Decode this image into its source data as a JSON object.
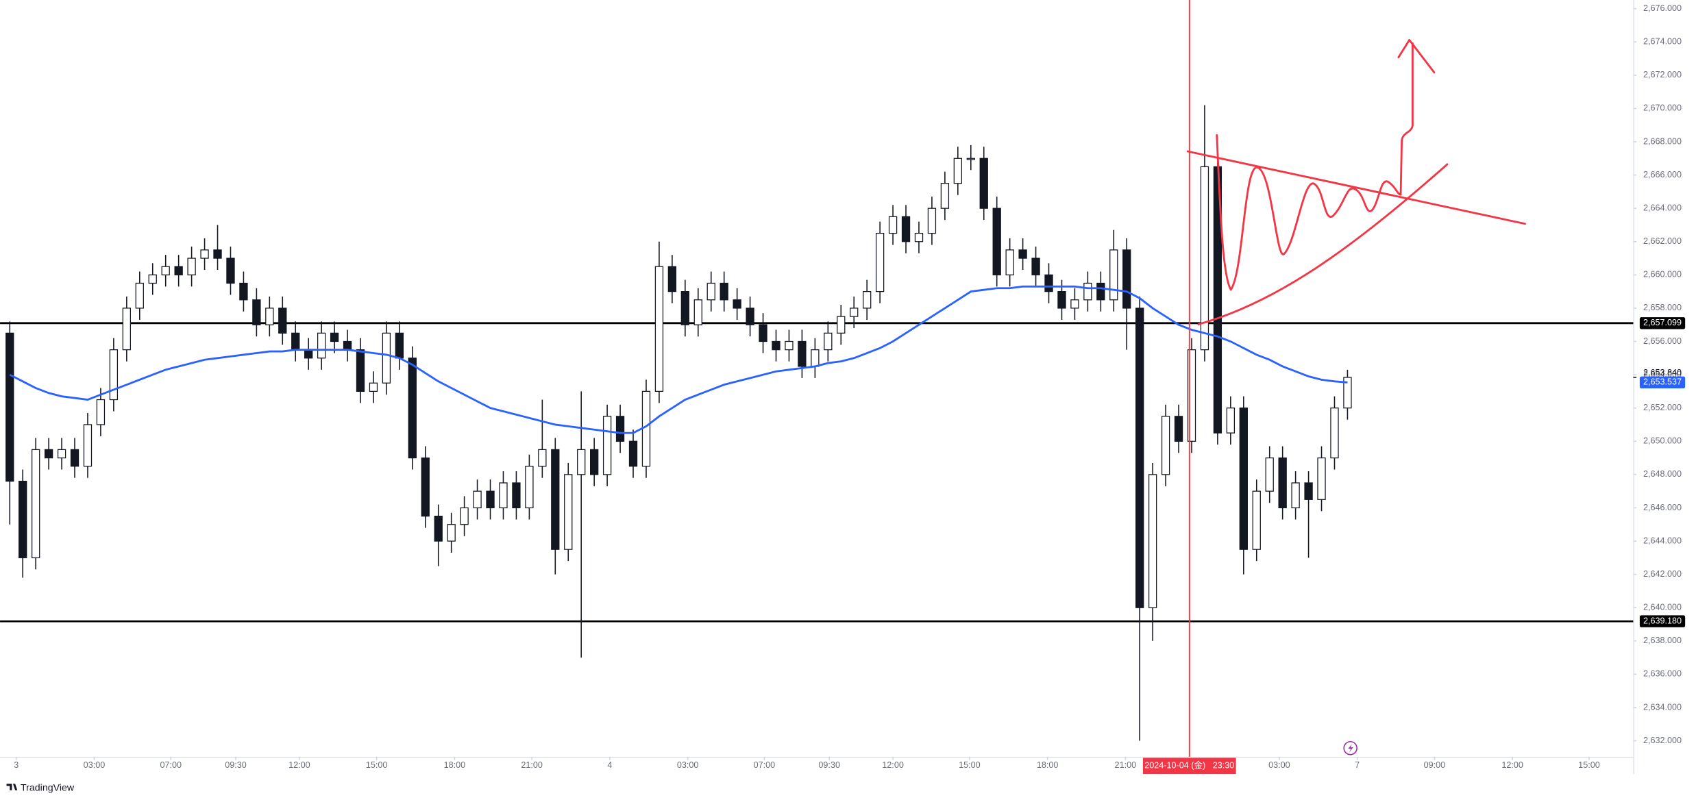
{
  "brand": "TradingView",
  "chart_data": {
    "type": "candlestick",
    "open": [
      2656.5,
      2647.6,
      2643,
      2649.5,
      2649,
      2649.5,
      2648.5,
      2651,
      2652.5,
      2655.5,
      2658,
      2659.5,
      2660,
      2660.5,
      2660,
      2661,
      2661.5,
      2661,
      2659.5,
      2658.5,
      2657,
      2658,
      2656.5,
      2655.5,
      2655,
      2656.5,
      2656,
      2655.5,
      2653,
      2653.5,
      2656.5,
      2655,
      2649,
      2645.5,
      2644,
      2645,
      2646,
      2647,
      2646,
      2647.5,
      2646,
      2648.5,
      2649.5,
      2643.5,
      2648,
      2649.5,
      2648,
      2651.5,
      2650,
      2648.5,
      2653,
      2660.5,
      2659,
      2657,
      2658.5,
      2659.5,
      2658.5,
      2658,
      2657,
      2656,
      2655.5,
      2656,
      2654.5,
      2655.5,
      2656.5,
      2657.5,
      2658,
      2659,
      2662.5,
      2663.5,
      2662,
      2662.5,
      2664,
      2665.5,
      2667,
      2667,
      2664,
      2660,
      2661.5,
      2661,
      2660,
      2659,
      2658,
      2658.5,
      2659.5,
      2658.5,
      2661.5,
      2658,
      2640,
      2648,
      2651.5,
      2650,
      2655.5,
      2666.5,
      2650.5,
      2652,
      2643.5,
      2647,
      2649,
      2646,
      2647.5,
      2646.5,
      2649,
      2652
    ],
    "high": [
      2657.2,
      2648.3,
      2650.2,
      2650.2,
      2650.2,
      2650.2,
      2651.7,
      2653.2,
      2656.2,
      2658.7,
      2660.2,
      2660.7,
      2661.2,
      2661.2,
      2661.7,
      2662.2,
      2663,
      2661.7,
      2660.2,
      2659.2,
      2658.7,
      2658.7,
      2657.2,
      2656.2,
      2657.2,
      2657.2,
      2656.7,
      2656.2,
      2654.2,
      2657.2,
      2657.2,
      2655.7,
      2649.7,
      2646.2,
      2645.7,
      2646.7,
      2647.7,
      2647.7,
      2648.2,
      2648.2,
      2649.2,
      2652.5,
      2650.2,
      2648.7,
      2653,
      2650.2,
      2652.2,
      2652.2,
      2650.7,
      2653.7,
      2662,
      2661.2,
      2659.7,
      2659.2,
      2660.2,
      2660.2,
      2659.2,
      2658.7,
      2657.7,
      2656.7,
      2656.7,
      2656.7,
      2656.2,
      2657.2,
      2658.2,
      2658.7,
      2659.7,
      2663.2,
      2664.2,
      2664.2,
      2663.2,
      2664.7,
      2666.2,
      2667.7,
      2667.8,
      2667.7,
      2664.7,
      2662.2,
      2662.2,
      2661.7,
      2660.7,
      2659.7,
      2659.2,
      2660.2,
      2660.2,
      2662.7,
      2662.2,
      2658.7,
      2648.7,
      2652.2,
      2652.2,
      2656.2,
      2670.2,
      2667.2,
      2652.7,
      2652.7,
      2647.7,
      2649.7,
      2649.7,
      2648.2,
      2648.2,
      2649.7,
      2652.7,
      2654.3
    ],
    "low": [
      2645,
      2641.8,
      2642.3,
      2648.3,
      2648.3,
      2647.8,
      2647.8,
      2650.3,
      2651.8,
      2654.8,
      2657.3,
      2658.8,
      2659.3,
      2659.3,
      2659.3,
      2660.3,
      2660.3,
      2658.8,
      2657.8,
      2656.3,
      2656.3,
      2655.8,
      2654.8,
      2654.3,
      2654.3,
      2655.3,
      2654.8,
      2652.3,
      2652.3,
      2652.8,
      2654.3,
      2648.3,
      2644.8,
      2642.5,
      2643.3,
      2644.3,
      2645.3,
      2645.3,
      2645.3,
      2645.3,
      2645.3,
      2647.8,
      2642,
      2642.8,
      2637,
      2647.3,
      2647.3,
      2649.3,
      2647.8,
      2647.8,
      2652.3,
      2658.3,
      2656.3,
      2656.3,
      2657.8,
      2657.8,
      2657.3,
      2656.3,
      2655.3,
      2654.8,
      2654.8,
      2653.8,
      2653.8,
      2654.8,
      2655.8,
      2656.8,
      2657.3,
      2658.3,
      2661.8,
      2661.3,
      2661.3,
      2661.8,
      2663.3,
      2664.8,
      2666.3,
      2663.3,
      2659.3,
      2659.3,
      2660.3,
      2659.3,
      2658.3,
      2657.3,
      2657.3,
      2657.8,
      2657.8,
      2657.8,
      2655.5,
      2632,
      2638,
      2647.3,
      2649.3,
      2649.3,
      2654.8,
      2649.8,
      2649.8,
      2642,
      2642.8,
      2646.3,
      2645.3,
      2645.3,
      2643,
      2645.8,
      2648.3,
      2651.3
    ],
    "close": [
      2647.6,
      2643,
      2649.5,
      2649,
      2649.5,
      2648.5,
      2651,
      2652.5,
      2655.5,
      2658,
      2659.5,
      2660,
      2660.5,
      2660,
      2661,
      2661.5,
      2661,
      2659.5,
      2658.5,
      2657,
      2658,
      2656.5,
      2655.5,
      2655,
      2656.5,
      2656,
      2655.5,
      2653,
      2653.5,
      2656.5,
      2655,
      2649,
      2645.5,
      2644,
      2645,
      2646,
      2647,
      2646,
      2647.5,
      2646,
      2648.5,
      2649.5,
      2643.5,
      2648,
      2649.5,
      2648,
      2651.5,
      2650,
      2648.5,
      2653,
      2660.5,
      2659,
      2657,
      2658.5,
      2659.5,
      2658.5,
      2658,
      2657,
      2656,
      2655.5,
      2656,
      2654.5,
      2655.5,
      2656.5,
      2657.5,
      2658,
      2659,
      2662.5,
      2663.5,
      2662,
      2662.5,
      2664,
      2665.5,
      2667,
      2667,
      2664,
      2660,
      2661.5,
      2661,
      2660,
      2659,
      2658,
      2658.5,
      2659.5,
      2658.5,
      2661.5,
      2658,
      2640,
      2648,
      2651.5,
      2650,
      2655.5,
      2666.5,
      2650.5,
      2652,
      2643.5,
      2647,
      2649,
      2646,
      2647.5,
      2646.5,
      2649,
      2652,
      2653.84
    ],
    "candle_colors": {
      "up": "#ffffff",
      "down": "#131722",
      "border": "#131722"
    },
    "ma": {
      "color": "#2962ff",
      "last_label": "2,653.537",
      "values": [
        2654,
        2653.6,
        2653.2,
        2652.9,
        2652.7,
        2652.6,
        2652.5,
        2652.8,
        2653.1,
        2653.4,
        2653.7,
        2654,
        2654.3,
        2654.5,
        2654.7,
        2654.9,
        2655,
        2655.1,
        2655.2,
        2655.3,
        2655.4,
        2655.4,
        2655.5,
        2655.5,
        2655.5,
        2655.5,
        2655.5,
        2655.4,
        2655.3,
        2655.2,
        2655,
        2654.6,
        2654.1,
        2653.6,
        2653.2,
        2652.8,
        2652.4,
        2652,
        2651.8,
        2651.6,
        2651.4,
        2651.2,
        2651,
        2650.9,
        2650.8,
        2650.7,
        2650.6,
        2650.5,
        2650.5,
        2650.9,
        2651.5,
        2652,
        2652.5,
        2652.8,
        2653.1,
        2653.4,
        2653.6,
        2653.8,
        2654,
        2654.2,
        2654.3,
        2654.4,
        2654.5,
        2654.7,
        2654.8,
        2655,
        2655.3,
        2655.6,
        2656,
        2656.5,
        2657,
        2657.5,
        2658,
        2658.5,
        2659,
        2659.1,
        2659.2,
        2659.2,
        2659.3,
        2659.3,
        2659.3,
        2659.3,
        2659.3,
        2659.2,
        2659.2,
        2659.1,
        2659,
        2658.6,
        2658,
        2657.5,
        2657,
        2656.7,
        2656.5,
        2656.3,
        2656,
        2655.6,
        2655.2,
        2654.9,
        2654.5,
        2654.2,
        2653.9,
        2653.7,
        2653.6,
        2653.537
      ]
    },
    "hlines": [
      {
        "value": 2657.099,
        "label": "2,657.099"
      },
      {
        "value": 2639.18,
        "label": "2,639.180"
      }
    ],
    "hline_color": "#000000",
    "last_price": {
      "value": 2653.84,
      "label": "2,653.840"
    },
    "crosshair": {
      "value": 90.83,
      "label": "2024-10-04 (金)   23:30",
      "color": "#f23645"
    },
    "xlim": [
      -0.75,
      125
    ],
    "ylim": [
      2631.04,
      2676.52
    ],
    "grid": false,
    "xticks": [
      {
        "value": 0.5,
        "label": "3"
      },
      {
        "value": 6.5,
        "label": "03:00"
      },
      {
        "value": 12.4,
        "label": "07:00"
      },
      {
        "value": 17.4,
        "label": "09:30"
      },
      {
        "value": 22.3,
        "label": "12:00"
      },
      {
        "value": 28.25,
        "label": "15:00"
      },
      {
        "value": 34.25,
        "label": "18:00"
      },
      {
        "value": 40.2,
        "label": "21:00"
      },
      {
        "value": 46.2,
        "label": "4"
      },
      {
        "value": 52.2,
        "label": "03:00"
      },
      {
        "value": 58.1,
        "label": "07:00"
      },
      {
        "value": 63.1,
        "label": "09:30"
      },
      {
        "value": 68,
        "label": "12:00"
      },
      {
        "value": 73.9,
        "label": "15:00"
      },
      {
        "value": 79.9,
        "label": "18:00"
      },
      {
        "value": 85.9,
        "label": "21:00"
      },
      {
        "value": 97.75,
        "label": "03:00"
      },
      {
        "value": 103.75,
        "label": "7"
      },
      {
        "value": 109.7,
        "label": "09:00"
      },
      {
        "value": 115.7,
        "label": "12:00"
      },
      {
        "value": 121.6,
        "label": "15:00"
      }
    ],
    "yticks": [
      {
        "value": 2632,
        "label": "2,632.000"
      },
      {
        "value": 2634,
        "label": "2,634.000"
      },
      {
        "value": 2636,
        "label": "2,636.000"
      },
      {
        "value": 2638,
        "label": "2,638.000"
      },
      {
        "value": 2640,
        "label": "2,640.000"
      },
      {
        "value": 2642,
        "label": "2,642.000"
      },
      {
        "value": 2644,
        "label": "2,644.000"
      },
      {
        "value": 2646,
        "label": "2,646.000"
      },
      {
        "value": 2648,
        "label": "2,648.000"
      },
      {
        "value": 2650,
        "label": "2,650.000"
      },
      {
        "value": 2652,
        "label": "2,652.000"
      },
      {
        "value": 2654,
        "label": "2,654.000"
      },
      {
        "value": 2656,
        "label": "2,656.000"
      },
      {
        "value": 2658,
        "label": "2,658.000"
      },
      {
        "value": 2660,
        "label": "2,660.000"
      },
      {
        "value": 2662,
        "label": "2,662.000"
      },
      {
        "value": 2664,
        "label": "2,664.000"
      },
      {
        "value": 2666,
        "label": "2,666.000"
      },
      {
        "value": 2668,
        "label": "2,668.000"
      },
      {
        "value": 2670,
        "label": "2,670.000"
      },
      {
        "value": 2672,
        "label": "2,672.000"
      },
      {
        "value": 2674,
        "label": "2,674.000"
      },
      {
        "value": 2676,
        "label": "2,676.000"
      }
    ]
  }
}
